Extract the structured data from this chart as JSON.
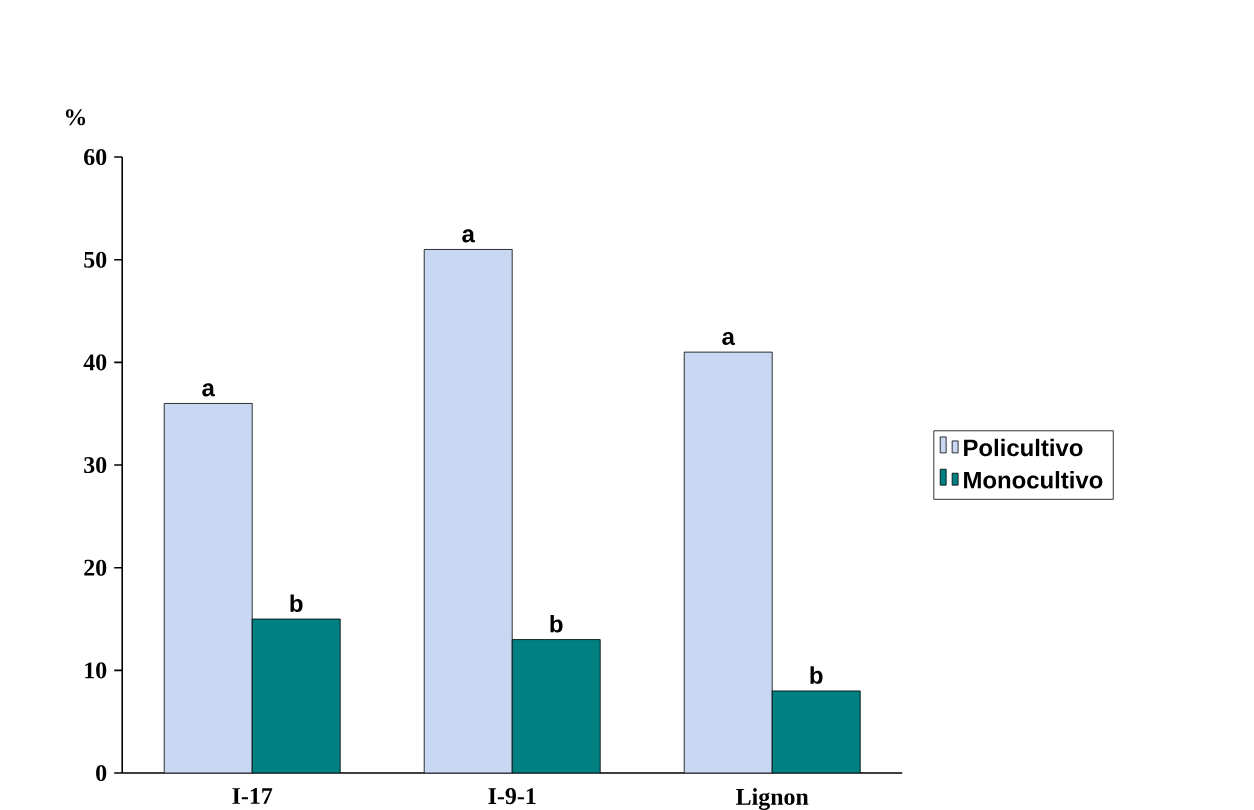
{
  "chart_data": {
    "type": "bar",
    "ylabel": "%",
    "categories": [
      "I-17",
      "I-9-1",
      "Lignon"
    ],
    "series": [
      {
        "name": "Policultivo",
        "color": "#c8d8f2",
        "values": [
          36,
          51,
          41
        ],
        "value_labels": [
          "a",
          "a",
          "a"
        ]
      },
      {
        "name": "Monocultivo",
        "color": "#008080",
        "values": [
          15,
          13,
          8
        ],
        "value_labels": [
          "b",
          "b",
          "b"
        ]
      }
    ],
    "ylim": [
      0,
      60
    ],
    "yticks": [
      0,
      10,
      20,
      30,
      40,
      50,
      60
    ],
    "grid": false,
    "legend": "right"
  }
}
